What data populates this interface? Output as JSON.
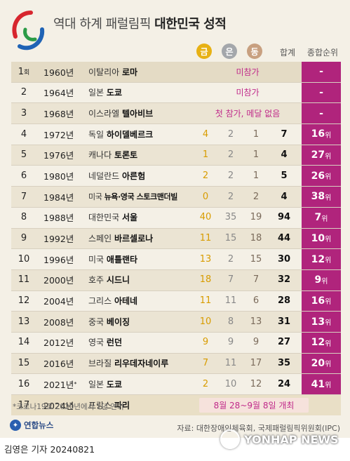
{
  "header": {
    "title_normal": "역대 하계 패럴림픽",
    "title_bold": "대한민국 성적",
    "gold_label": "금",
    "silver_label": "은",
    "bronze_label": "동",
    "total_label": "합계",
    "rank_label": "종합순위"
  },
  "rows": [
    {
      "no": "1",
      "no_suffix": "회",
      "year": "1960년",
      "country": "이탈리아",
      "city": "로마",
      "note": "미참가",
      "rank": "-"
    },
    {
      "no": "2",
      "year": "1964년",
      "country": "일본",
      "city": "도쿄",
      "note": "미참가",
      "rank": "-"
    },
    {
      "no": "3",
      "year": "1968년",
      "country": "이스라엘",
      "city": "텔아비브",
      "note": "첫 참가, 메달 없음",
      "rank": "-"
    },
    {
      "no": "4",
      "year": "1972년",
      "country": "독일",
      "city": "하이델베르크",
      "gold": "4",
      "silver": "2",
      "bronze": "1",
      "total": "7",
      "rank": "16",
      "rank_suffix": "위"
    },
    {
      "no": "5",
      "year": "1976년",
      "country": "캐나다",
      "city": "토론토",
      "gold": "1",
      "silver": "2",
      "bronze": "1",
      "total": "4",
      "rank": "27",
      "rank_suffix": "위"
    },
    {
      "no": "6",
      "year": "1980년",
      "country": "네덜란드",
      "city": "아른험",
      "gold": "2",
      "silver": "2",
      "bronze": "1",
      "total": "5",
      "rank": "26",
      "rank_suffix": "위"
    },
    {
      "no": "7",
      "year": "1984년",
      "country": "미국",
      "city": "뉴욕·영국 스토크맨더빌",
      "gold": "0",
      "silver": "2",
      "bronze": "2",
      "total": "4",
      "rank": "38",
      "rank_suffix": "위"
    },
    {
      "no": "8",
      "year": "1988년",
      "country": "대한민국",
      "city": "서울",
      "gold": "40",
      "silver": "35",
      "bronze": "19",
      "total": "94",
      "rank": "7",
      "rank_suffix": "위"
    },
    {
      "no": "9",
      "year": "1992년",
      "country": "스페인",
      "city": "바르셀로나",
      "gold": "11",
      "silver": "15",
      "bronze": "18",
      "total": "44",
      "rank": "10",
      "rank_suffix": "위"
    },
    {
      "no": "10",
      "year": "1996년",
      "country": "미국",
      "city": "애틀랜타",
      "gold": "13",
      "silver": "2",
      "bronze": "15",
      "total": "30",
      "rank": "12",
      "rank_suffix": "위"
    },
    {
      "no": "11",
      "year": "2000년",
      "country": "호주",
      "city": "시드니",
      "gold": "18",
      "silver": "7",
      "bronze": "7",
      "total": "32",
      "rank": "9",
      "rank_suffix": "위"
    },
    {
      "no": "12",
      "year": "2004년",
      "country": "그리스",
      "city": "아테네",
      "gold": "11",
      "silver": "11",
      "bronze": "6",
      "total": "28",
      "rank": "16",
      "rank_suffix": "위"
    },
    {
      "no": "13",
      "year": "2008년",
      "country": "중국",
      "city": "베이징",
      "gold": "10",
      "silver": "8",
      "bronze": "13",
      "total": "31",
      "rank": "13",
      "rank_suffix": "위"
    },
    {
      "no": "14",
      "year": "2012년",
      "country": "영국",
      "city": "런던",
      "gold": "9",
      "silver": "9",
      "bronze": "9",
      "total": "27",
      "rank": "12",
      "rank_suffix": "위"
    },
    {
      "no": "15",
      "year": "2016년",
      "country": "브라질",
      "city": "리우데자네이루",
      "gold": "7",
      "silver": "11",
      "bronze": "17",
      "total": "35",
      "rank": "20",
      "rank_suffix": "위"
    },
    {
      "no": "16",
      "year": "2021년",
      "year_mark": "*",
      "country": "일본",
      "city": "도쿄",
      "gold": "2",
      "silver": "10",
      "bronze": "12",
      "total": "24",
      "rank": "41",
      "rank_suffix": "위"
    },
    {
      "no": "17",
      "year": "2024년",
      "country": "프랑스",
      "city": "파리",
      "note": "8월 28~9월 8일 개최"
    }
  ],
  "footnote": "*코로나19로 2020년에서 1년 연기",
  "brand": "연합뉴스",
  "source": "자료: 대한장애인체육회, 국제패럴림픽위원회(IPC)",
  "byline": "김영은 기자  20240821",
  "watermark": "YONHAP NEWS",
  "colors": {
    "accent": "#b0247c",
    "gold": "#e7b114",
    "silver": "#a4a7ab",
    "bronze": "#c8a080",
    "background": "#f4f0e6"
  }
}
